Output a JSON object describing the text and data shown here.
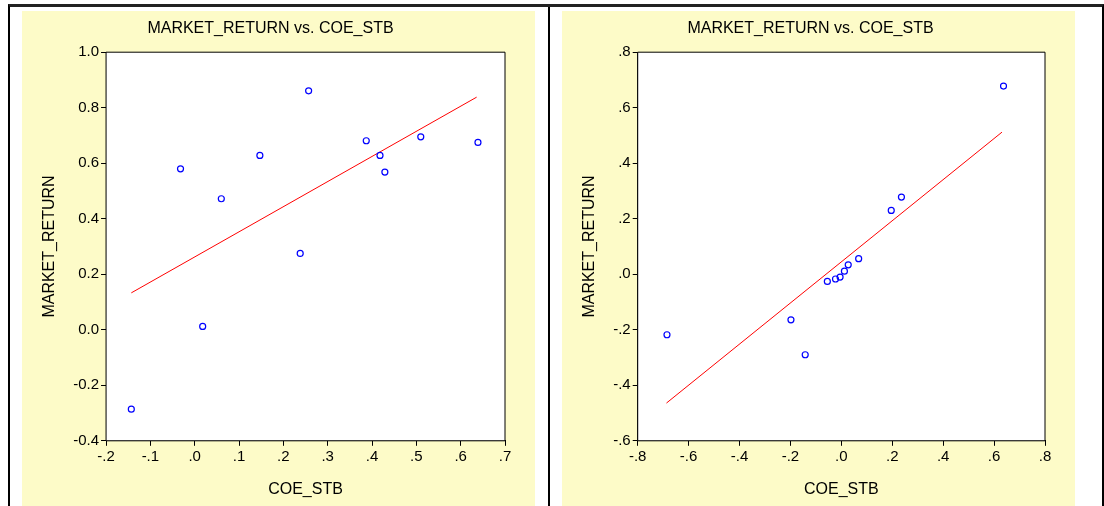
{
  "chart_data": [
    {
      "type": "scatter",
      "title": "MARKET_RETURN vs. COE_STB",
      "xlabel": "COE_STB",
      "ylabel": "MARKET_RETURN",
      "grid": false,
      "legend": false,
      "xlim": [
        -0.2,
        0.7
      ],
      "xticks": [
        {
          "value": -0.2,
          "label": "-.2"
        },
        {
          "value": -0.1,
          "label": "-.1"
        },
        {
          "value": 0,
          "label": ".0"
        },
        {
          "value": 0.1,
          "label": ".1"
        },
        {
          "value": 0.2,
          "label": ".2"
        },
        {
          "value": 0.3,
          "label": ".3"
        },
        {
          "value": 0.4,
          "label": ".4"
        },
        {
          "value": 0.5,
          "label": ".5"
        },
        {
          "value": 0.6,
          "label": ".6"
        },
        {
          "value": 0.7,
          "label": ".7"
        }
      ],
      "ylim": [
        -0.4,
        1.0
      ],
      "yticks": [
        {
          "value": -0.4,
          "label": "-0.4"
        },
        {
          "value": -0.2,
          "label": "-0.2"
        },
        {
          "value": 0,
          "label": "0.0"
        },
        {
          "value": 0.2,
          "label": "0.2"
        },
        {
          "value": 0.4,
          "label": "0.4"
        },
        {
          "value": 0.6,
          "label": "0.6"
        },
        {
          "value": 0.8,
          "label": "0.8"
        },
        {
          "value": 1.0,
          "label": "1.0"
        }
      ],
      "series": [
        {
          "type": "scatter",
          "marker": "circle",
          "color": "#0000ff",
          "x": [
            -0.143,
            -0.032,
            0.018,
            0.06,
            0.147,
            0.238,
            0.257,
            0.387,
            0.418,
            0.429,
            0.51,
            0.639
          ],
          "values": [
            -0.286,
            0.58,
            0.012,
            0.472,
            0.628,
            0.275,
            0.861,
            0.681,
            0.628,
            0.568,
            0.695,
            0.675
          ]
        },
        {
          "type": "line",
          "marker": "none",
          "color": "#ff0000",
          "x": [
            -0.143,
            0.636
          ],
          "values": [
            0.133,
            0.838
          ]
        }
      ]
    },
    {
      "type": "scatter",
      "title": "MARKET_RETURN vs. COE_STB",
      "xlabel": "COE_STB",
      "ylabel": "MARKET_RETURN",
      "grid": false,
      "legend": false,
      "xlim": [
        -0.8,
        0.8
      ],
      "xticks": [
        {
          "value": -0.8,
          "label": "-.8"
        },
        {
          "value": -0.6,
          "label": "-.6"
        },
        {
          "value": -0.4,
          "label": "-.4"
        },
        {
          "value": -0.2,
          "label": "-.2"
        },
        {
          "value": 0,
          "label": ".0"
        },
        {
          "value": 0.2,
          "label": ".2"
        },
        {
          "value": 0.4,
          "label": ".4"
        },
        {
          "value": 0.6,
          "label": ".6"
        },
        {
          "value": 0.8,
          "label": ".8"
        }
      ],
      "ylim": [
        -0.6,
        0.8
      ],
      "yticks": [
        {
          "value": -0.6,
          "label": "-.6"
        },
        {
          "value": -0.4,
          "label": "-.4"
        },
        {
          "value": -0.2,
          "label": "-.2"
        },
        {
          "value": 0,
          "label": ".0"
        },
        {
          "value": 0.2,
          "label": ".2"
        },
        {
          "value": 0.4,
          "label": ".4"
        },
        {
          "value": 0.6,
          "label": ".6"
        },
        {
          "value": 0.8,
          "label": ".8"
        }
      ],
      "series": [
        {
          "type": "scatter",
          "marker": "circle",
          "color": "#0000ff",
          "x": [
            -0.685,
            -0.198,
            -0.142,
            -0.055,
            -0.023,
            -0.005,
            0.012,
            0.027,
            0.068,
            0.196,
            0.236,
            0.637
          ],
          "values": [
            -0.218,
            -0.164,
            -0.29,
            -0.026,
            -0.017,
            -0.01,
            0.011,
            0.034,
            0.056,
            0.23,
            0.278,
            0.678
          ]
        },
        {
          "type": "line",
          "marker": "none",
          "color": "#ff0000",
          "x": [
            -0.687,
            0.631
          ],
          "values": [
            -0.464,
            0.512
          ]
        }
      ]
    }
  ]
}
